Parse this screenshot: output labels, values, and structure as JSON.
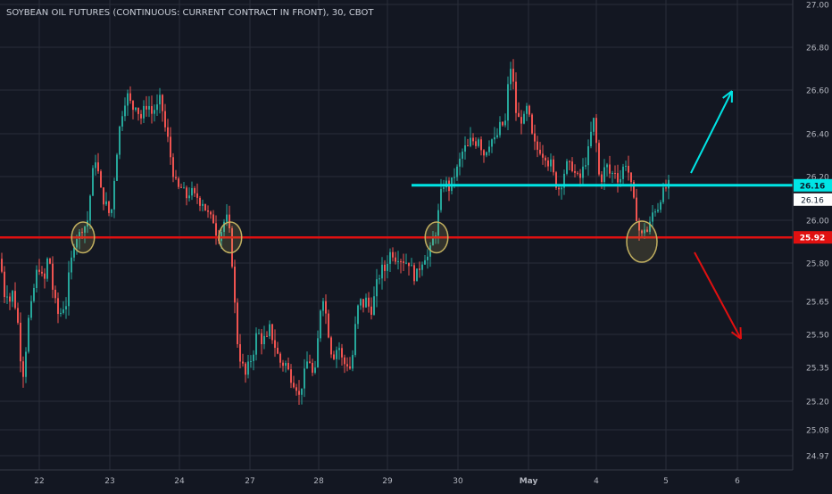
{
  "chart_title": "SOYBEAN OIL FUTURES (CONTINUOUS: CURRENT CONTRACT IN FRONT), 30, CBOT",
  "colors": {
    "background": "#131722",
    "grid": "#2a2e39",
    "axis_text": "#b2b5be",
    "up": "#26a69a",
    "down": "#ef5350",
    "resistance": "#00e5e5",
    "support": "#e01010",
    "circle": "#c2b060"
  },
  "chart_data": {
    "type": "candlestick",
    "y_ticks": [
      "27.00",
      "26.80",
      "26.60",
      "26.40",
      "26.20",
      "26.00",
      "25.80",
      "25.65",
      "25.50",
      "25.35",
      "25.20",
      "25.08",
      "24.97"
    ],
    "x_labels": [
      "22",
      "23",
      "24",
      "27",
      "28",
      "29",
      "30",
      "May",
      "4",
      "5",
      "6"
    ],
    "ylim": [
      24.97,
      27.0
    ],
    "grid": true,
    "resistance_level": {
      "label": "26.16",
      "value": 26.16
    },
    "support_level": {
      "label": "25.92",
      "value": 25.92
    },
    "current_price": {
      "label": "26.16",
      "value": 26.16
    },
    "series": [
      {
        "ohlc_anchors": [
          [
            0,
            25.82
          ],
          [
            3,
            25.66
          ],
          [
            6,
            25.72
          ],
          [
            9,
            25.63
          ],
          [
            12,
            25.7
          ],
          [
            15,
            25.65
          ],
          [
            18,
            25.6
          ],
          [
            21,
            25.45
          ],
          [
            24,
            25.3
          ],
          [
            27,
            25.38
          ],
          [
            30,
            25.55
          ],
          [
            33,
            25.6
          ],
          [
            36,
            25.68
          ],
          [
            39,
            25.74
          ],
          [
            42,
            25.8
          ],
          [
            45,
            25.76
          ],
          [
            48,
            25.7
          ],
          [
            51,
            25.8
          ],
          [
            54,
            25.84
          ],
          [
            57,
            25.72
          ],
          [
            60,
            25.66
          ],
          [
            63,
            25.6
          ],
          [
            66,
            25.58
          ],
          [
            69,
            25.64
          ],
          [
            72,
            25.6
          ],
          [
            75,
            25.72
          ],
          [
            78,
            25.78
          ],
          [
            81,
            25.88
          ],
          [
            84,
            25.93
          ],
          [
            87,
            25.92
          ],
          [
            90,
            25.96
          ],
          [
            93,
            25.98
          ],
          [
            96,
            25.96
          ],
          [
            99,
            26.08
          ],
          [
            102,
            26.18
          ],
          [
            105,
            26.3
          ],
          [
            108,
            26.25
          ],
          [
            111,
            26.15
          ],
          [
            114,
            26.1
          ],
          [
            117,
            26.08
          ],
          [
            120,
            26.05
          ],
          [
            123,
            26.0
          ],
          [
            126,
            26.15
          ],
          [
            129,
            26.28
          ],
          [
            132,
            26.4
          ],
          [
            135,
            26.48
          ],
          [
            138,
            26.54
          ],
          [
            141,
            26.58
          ],
          [
            144,
            26.56
          ],
          [
            147,
            26.5
          ],
          [
            150,
            26.55
          ],
          [
            153,
            26.52
          ],
          [
            156,
            26.46
          ],
          [
            159,
            26.5
          ],
          [
            162,
            26.52
          ],
          [
            165,
            26.55
          ],
          [
            168,
            26.48
          ],
          [
            171,
            26.52
          ],
          [
            174,
            26.5
          ],
          [
            177,
            26.56
          ],
          [
            180,
            26.54
          ],
          [
            183,
            26.44
          ],
          [
            186,
            26.4
          ],
          [
            189,
            26.32
          ],
          [
            192,
            26.24
          ],
          [
            195,
            26.18
          ],
          [
            198,
            26.14
          ],
          [
            201,
            26.15
          ],
          [
            204,
            26.14
          ],
          [
            207,
            26.1
          ],
          [
            210,
            26.12
          ],
          [
            213,
            26.14
          ],
          [
            216,
            26.1
          ],
          [
            219,
            26.12
          ],
          [
            222,
            26.08
          ],
          [
            225,
            26.1
          ],
          [
            228,
            26.06
          ],
          [
            231,
            26.04
          ],
          [
            234,
            26.0
          ],
          [
            237,
            26.02
          ],
          [
            240,
            25.96
          ],
          [
            243,
            25.92
          ],
          [
            246,
            25.94
          ],
          [
            249,
            25.98
          ],
          [
            252,
            26.02
          ],
          [
            255,
            25.98
          ],
          [
            258,
            25.86
          ],
          [
            261,
            25.7
          ],
          [
            264,
            25.5
          ],
          [
            267,
            25.4
          ],
          [
            270,
            25.38
          ],
          [
            273,
            25.3
          ],
          [
            276,
            25.34
          ],
          [
            279,
            25.38
          ],
          [
            282,
            25.4
          ],
          [
            285,
            25.48
          ],
          [
            288,
            25.52
          ],
          [
            291,
            25.46
          ],
          [
            294,
            25.5
          ],
          [
            297,
            25.44
          ],
          [
            300,
            25.54
          ],
          [
            303,
            25.5
          ],
          [
            306,
            25.46
          ],
          [
            309,
            25.42
          ],
          [
            312,
            25.38
          ],
          [
            315,
            25.36
          ],
          [
            318,
            25.38
          ],
          [
            321,
            25.34
          ],
          [
            324,
            25.32
          ],
          [
            327,
            25.28
          ],
          [
            330,
            25.3
          ],
          [
            333,
            25.2
          ],
          [
            336,
            25.26
          ],
          [
            339,
            25.3
          ],
          [
            342,
            25.36
          ],
          [
            345,
            25.4
          ],
          [
            348,
            25.34
          ],
          [
            351,
            25.28
          ],
          [
            354,
            25.42
          ],
          [
            357,
            25.58
          ],
          [
            360,
            25.7
          ],
          [
            363,
            25.62
          ],
          [
            366,
            25.54
          ],
          [
            369,
            25.44
          ],
          [
            372,
            25.4
          ],
          [
            375,
            25.42
          ],
          [
            378,
            25.46
          ],
          [
            381,
            25.4
          ],
          [
            384,
            25.36
          ],
          [
            387,
            25.38
          ],
          [
            390,
            25.34
          ],
          [
            393,
            25.36
          ],
          [
            396,
            25.5
          ],
          [
            399,
            25.6
          ],
          [
            402,
            25.66
          ],
          [
            405,
            25.62
          ],
          [
            408,
            25.66
          ],
          [
            411,
            25.64
          ],
          [
            414,
            25.6
          ],
          [
            417,
            25.64
          ],
          [
            420,
            25.7
          ],
          [
            423,
            25.74
          ],
          [
            426,
            25.78
          ],
          [
            429,
            25.76
          ],
          [
            432,
            25.8
          ],
          [
            435,
            25.84
          ],
          [
            438,
            25.86
          ],
          [
            441,
            25.82
          ],
          [
            444,
            25.84
          ],
          [
            447,
            25.82
          ],
          [
            450,
            25.82
          ],
          [
            453,
            25.8
          ],
          [
            456,
            25.82
          ],
          [
            459,
            25.78
          ],
          [
            462,
            25.76
          ],
          [
            465,
            25.74
          ],
          [
            468,
            25.78
          ],
          [
            471,
            25.8
          ],
          [
            474,
            25.84
          ],
          [
            477,
            25.82
          ],
          [
            480,
            25.84
          ],
          [
            483,
            25.9
          ],
          [
            486,
            25.92
          ],
          [
            489,
            26.0
          ],
          [
            492,
            26.1
          ],
          [
            495,
            26.16
          ],
          [
            498,
            26.18
          ],
          [
            501,
            26.14
          ],
          [
            504,
            26.16
          ],
          [
            507,
            26.2
          ],
          [
            510,
            26.22
          ],
          [
            513,
            26.26
          ],
          [
            516,
            26.3
          ],
          [
            519,
            26.34
          ],
          [
            522,
            26.32
          ],
          [
            525,
            26.36
          ],
          [
            528,
            26.38
          ],
          [
            531,
            26.34
          ],
          [
            534,
            26.4
          ],
          [
            537,
            26.36
          ],
          [
            540,
            26.3
          ],
          [
            543,
            26.32
          ],
          [
            546,
            26.35
          ],
          [
            549,
            26.38
          ],
          [
            552,
            26.36
          ],
          [
            555,
            26.38
          ],
          [
            558,
            26.42
          ],
          [
            561,
            26.46
          ],
          [
            564,
            26.4
          ],
          [
            567,
            26.56
          ],
          [
            570,
            26.72
          ],
          [
            573,
            26.68
          ],
          [
            576,
            26.52
          ],
          [
            579,
            26.46
          ],
          [
            582,
            26.48
          ],
          [
            585,
            26.44
          ],
          [
            588,
            26.52
          ],
          [
            591,
            26.5
          ],
          [
            594,
            26.4
          ],
          [
            597,
            26.36
          ],
          [
            600,
            26.32
          ],
          [
            603,
            26.34
          ],
          [
            606,
            26.3
          ],
          [
            609,
            26.32
          ],
          [
            612,
            26.26
          ],
          [
            615,
            26.28
          ],
          [
            618,
            26.22
          ],
          [
            621,
            26.18
          ],
          [
            624,
            26.14
          ],
          [
            627,
            26.16
          ],
          [
            630,
            26.2
          ],
          [
            633,
            26.26
          ],
          [
            636,
            26.24
          ],
          [
            639,
            26.26
          ],
          [
            642,
            26.22
          ],
          [
            645,
            26.2
          ],
          [
            648,
            26.18
          ],
          [
            651,
            26.22
          ],
          [
            654,
            26.26
          ],
          [
            657,
            26.3
          ],
          [
            660,
            26.36
          ],
          [
            663,
            26.48
          ],
          [
            666,
            26.42
          ],
          [
            669,
            26.22
          ],
          [
            672,
            26.18
          ],
          [
            675,
            26.22
          ],
          [
            678,
            26.26
          ],
          [
            681,
            26.22
          ],
          [
            684,
            26.2
          ],
          [
            687,
            26.24
          ],
          [
            690,
            26.2
          ],
          [
            693,
            26.18
          ],
          [
            696,
            26.22
          ],
          [
            699,
            26.28
          ],
          [
            702,
            26.24
          ],
          [
            705,
            26.18
          ],
          [
            708,
            26.1
          ],
          [
            711,
            26.04
          ],
          [
            714,
            25.98
          ],
          [
            717,
            25.9
          ],
          [
            720,
            25.98
          ],
          [
            723,
            25.94
          ],
          [
            726,
            25.96
          ],
          [
            729,
            26.02
          ],
          [
            732,
            26.06
          ],
          [
            735,
            26.04
          ],
          [
            738,
            26.1
          ],
          [
            741,
            26.12
          ],
          [
            744,
            26.14
          ],
          [
            747,
            26.16
          ]
        ]
      }
    ]
  },
  "annotations": {
    "resistance_line": {
      "from_x": 461,
      "to_x": 932,
      "value": 26.16
    },
    "support_line": {
      "from_x": 0,
      "to_x": 932,
      "value": 25.92
    },
    "touch_circles": [
      {
        "x": 93,
        "value": 25.92,
        "r": 15
      },
      {
        "x": 258,
        "value": 25.92,
        "r": 15
      },
      {
        "x": 489,
        "value": 25.92,
        "r": 15
      },
      {
        "x": 719,
        "value": 25.9,
        "r": 20
      }
    ],
    "up_arrow": {
      "from": [
        774,
        194
      ],
      "to": [
        820,
        102
      ]
    },
    "down_arrow": {
      "from": [
        778,
        283
      ],
      "to": [
        830,
        380
      ]
    }
  }
}
